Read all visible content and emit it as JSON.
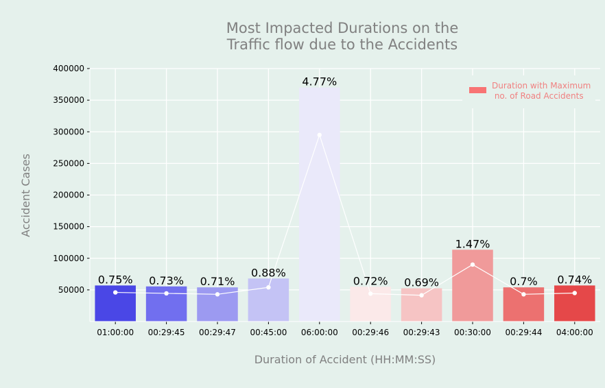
{
  "colors": {
    "background": "#e5f1ec",
    "grid": "#ffffff",
    "title": "#808080",
    "axis_label": "#808080",
    "legend_text": "#f08080",
    "legend_swatch": "#f87474",
    "line": "#ffffff"
  },
  "chart_data": {
    "type": "bar",
    "title": "Most Impacted Durations on the\nTraffic flow due to the Accidents",
    "xlabel": "Duration of Accident (HH:MM:SS)",
    "ylabel": "Accident Cases",
    "ylim": [
      0,
      400000
    ],
    "yticks": [
      50000,
      100000,
      150000,
      200000,
      250000,
      300000,
      350000,
      400000
    ],
    "grid": true,
    "legend": {
      "placement": "top-right",
      "label": "Duration with Maximum\n no. of Road Accidents"
    },
    "categories": [
      "01:00:00",
      "00:29:45",
      "00:29:47",
      "00:45:00",
      "06:00:00",
      "00:29:46",
      "00:29:43",
      "00:30:00",
      "00:29:44",
      "04:00:00"
    ],
    "values": [
      57000,
      55500,
      54000,
      68000,
      370000,
      55000,
      52500,
      113500,
      54000,
      57000
    ],
    "line_values": [
      46000,
      44500,
      43000,
      54000,
      295000,
      44000,
      41500,
      90000,
      43000,
      45000
    ],
    "percent_labels": [
      "0.75%",
      "0.73%",
      "0.71%",
      "0.88%",
      "4.77%",
      "0.72%",
      "0.69%",
      "1.47%",
      "0.7%",
      "0.74%"
    ],
    "bar_colors": [
      "#4a47e6",
      "#716fef",
      "#9c9af1",
      "#c4c3f5",
      "#eae9fa",
      "#fbe9e9",
      "#f6c4c4",
      "#f09a9a",
      "#ec7170",
      "#e54849"
    ]
  }
}
